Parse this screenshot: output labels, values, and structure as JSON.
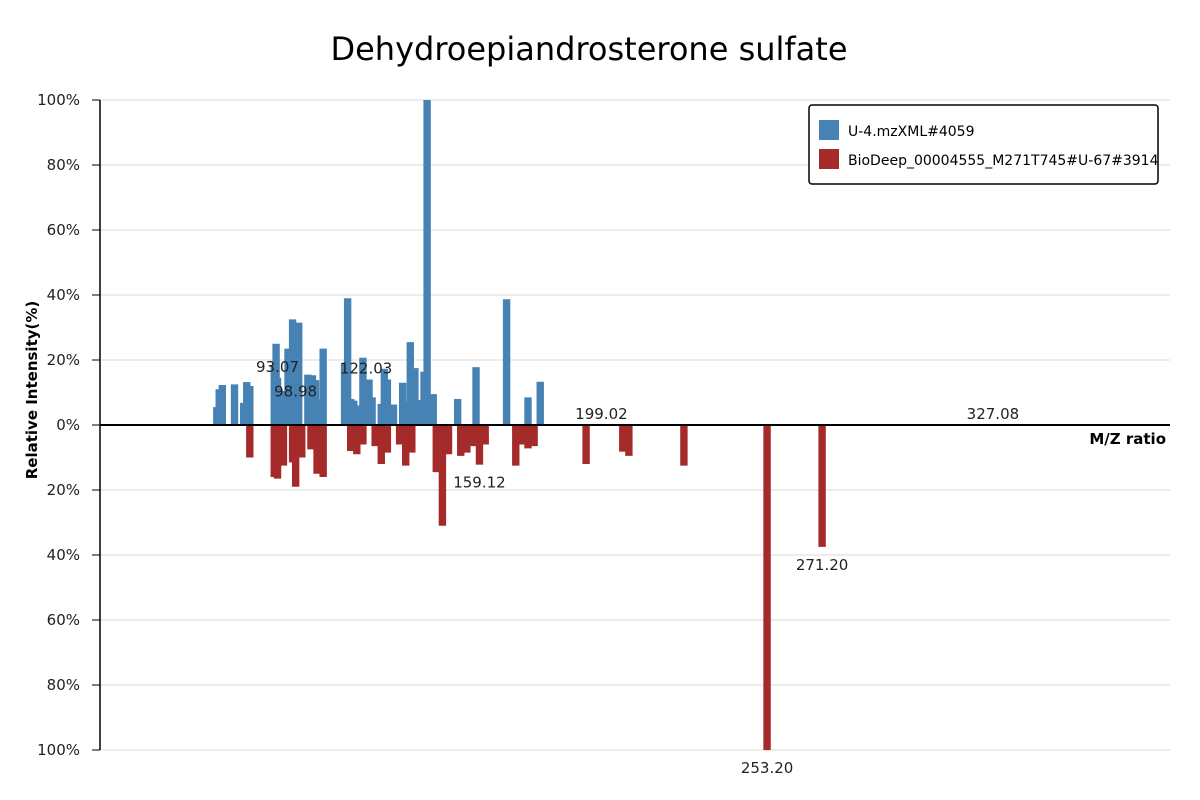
{
  "chart_data": {
    "type": "bar",
    "title": "Dehydroepiandrosterone sulfate",
    "xlabel": "M/Z ratio",
    "ylabel": "Relative Intensity(%)",
    "y_ticks_top": [
      "100%",
      "80%",
      "60%",
      "40%",
      "20%",
      "0%"
    ],
    "y_ticks_bottom": [
      "20%",
      "40%",
      "60%",
      "80%",
      "100%"
    ],
    "ylim": [
      -100,
      100
    ],
    "xlim": [
      35,
      385
    ],
    "grid": true,
    "legend_position": "top-right",
    "colors": {
      "query": "#4682B4",
      "reference": "#A52A2A"
    },
    "series": [
      {
        "name": "U-4.mzXML#4059",
        "mz": [
          1.0,
          73.2,
          1.0,
          74.0,
          1.0,
          75.0,
          1.0,
          79.0,
          1.0,
          82.0,
          1.0,
          83.0,
          1.0,
          84.0,
          1.0,
          92.0,
          1.0,
          92.6,
          1.0,
          93.07,
          1.0,
          94.5,
          1.0,
          95.5,
          1.0,
          96.5,
          1.0,
          98.0,
          1.0,
          98.98,
          1.0,
          100.0,
          1.0,
          103.0,
          1.0,
          104.5,
          1.0,
          105.5,
          1.0,
          106.5,
          1.0,
          108.0,
          1.0,
          115.0,
          1.0,
          116.0,
          1.0,
          117.0,
          1.0,
          118.0,
          1.0,
          119.0,
          1.0,
          121.0,
          1.0,
          122.03,
          1.0,
          123.0,
          1.0,
          124.0,
          1.0,
          127.0,
          1.0,
          128.0,
          1.0,
          129.0,
          1.0,
          131.0,
          1.0,
          134.0,
          1.0,
          135.0,
          1.0,
          136.5,
          1.0,
          138.0,
          1.0,
          139.0,
          1.0,
          141.0,
          1.0,
          142.0,
          1.0,
          144.0,
          1.0,
          152.0,
          1.0,
          158.0,
          1.0,
          168.0,
          1.0,
          175.0,
          1.0,
          179.0,
          1.0,
          184.0,
          1.0,
          199.02,
          1.0,
          206.0,
          1.0,
          227.0,
          1.0,
          264.0,
          1.0,
          303.0,
          1.0,
          327.08,
          1.0,
          345.0,
          1.0,
          358.0
        ],
        "intensity": [
          0,
          5.5,
          0,
          11,
          0,
          12.3,
          0,
          12.5,
          0,
          6.8,
          0,
          13.2,
          0,
          12,
          0,
          18.5,
          0,
          25,
          0,
          14.5,
          0,
          10.5,
          0,
          7.5,
          0,
          23.5,
          0,
          32.5,
          0,
          7,
          0,
          31.5,
          0,
          15.5,
          0,
          15.3,
          0,
          13.8,
          0,
          7.5,
          0,
          23.5,
          0,
          19,
          0,
          39,
          0,
          8,
          0,
          7.5,
          0,
          6,
          0,
          20.7,
          0,
          14,
          0,
          14,
          0,
          8.5,
          0,
          6.5,
          0,
          17.3,
          0,
          14,
          0,
          6.3,
          0,
          13,
          0,
          7.3,
          0,
          25.5,
          0,
          17.5,
          0,
          7.7,
          0,
          16.4,
          0,
          100,
          0,
          9.5,
          0,
          8,
          0,
          17.8,
          0,
          38.7,
          0,
          8.5,
          0,
          13.3,
          0,
          0,
          0,
          0,
          0,
          0
        ]
      },
      {
        "name": "BioDeep_00004555_M271T745#U-67#3914",
        "mz": [
          84.0,
          92.0,
          93.07,
          95.0,
          98.0,
          99.0,
          101.0,
          104.0,
          106.0,
          108.0,
          117.0,
          119.0,
          121.0,
          125.0,
          127.0,
          129.0,
          133.0,
          135.0,
          137.0,
          145.0,
          147.0,
          149.0,
          153.0,
          155.0,
          157.0,
          159.12,
          161.0,
          171.0,
          173.0,
          175.0,
          177.0,
          194.0,
          206.0,
          208.0,
          226.0,
          253.2,
          271.2
        ],
        "intensity": [
          10,
          16,
          16.5,
          12.5,
          11.5,
          19,
          10,
          7.5,
          15,
          16,
          8,
          9,
          6,
          6.5,
          12,
          8.5,
          6,
          12.5,
          8.5,
          14.5,
          31,
          9,
          9.5,
          8.5,
          6.5,
          12.2,
          6,
          12.5,
          6,
          7.2,
          6.5,
          12,
          8.2,
          9.5,
          12.5,
          100,
          37.5
        ]
      }
    ],
    "peak_labels": {
      "query": [
        {
          "mz": 93.07,
          "text": "93.07"
        },
        {
          "mz": 98.98,
          "text": "98.98"
        },
        {
          "mz": 122.03,
          "text": "122.03"
        },
        {
          "mz": 199.02,
          "text": "199.02"
        },
        {
          "mz": 327.08,
          "text": "327.08"
        }
      ],
      "reference": [
        {
          "mz": 159.12,
          "text": "159.12"
        },
        {
          "mz": 253.2,
          "text": "253.20"
        },
        {
          "mz": 271.2,
          "text": "271.20"
        }
      ]
    }
  }
}
